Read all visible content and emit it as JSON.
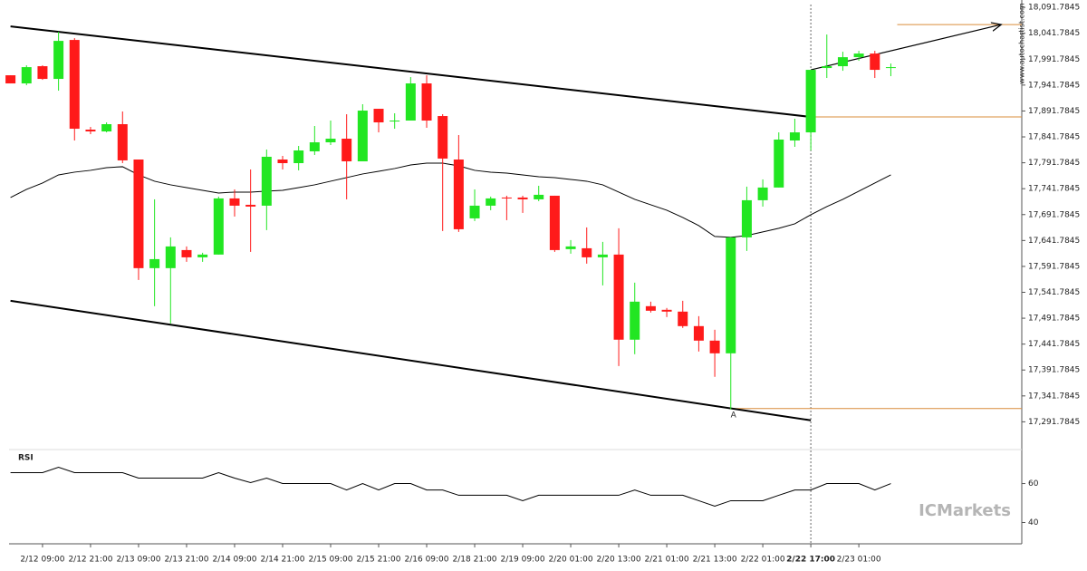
{
  "chart_data": {
    "type": "candlestick",
    "categories": [
      null,
      null,
      "2/12 09:00",
      null,
      null,
      "2/12 21:00",
      null,
      null,
      "2/13 09:00",
      null,
      null,
      "2/13 21:00",
      null,
      null,
      "2/14 09:00",
      null,
      null,
      "2/14 21:00",
      null,
      null,
      "2/15 09:00",
      null,
      null,
      "2/15 21:00",
      null,
      null,
      "2/16 09:00",
      null,
      null,
      "2/18 21:00",
      null,
      null,
      "2/19 09:00",
      null,
      null,
      "2/20 01:00",
      null,
      null,
      "2/20 13:00",
      null,
      null,
      "2/21 01:00",
      null,
      null,
      "2/21 13:00",
      null,
      null,
      "2/22 01:00",
      null,
      null,
      "2/22 17:00",
      null,
      null,
      "2/23 01:00",
      null,
      null
    ],
    "open": [
      17960.7,
      17945,
      17978.2,
      17953.7,
      18028.9,
      17855.8,
      17852.3,
      17866.3,
      17798.1,
      17588.4,
      17588.4,
      17623.3,
      17609.3,
      17614.6,
      17723,
      17710.7,
      17709,
      17798.1,
      17791.1,
      17813.9,
      17831.3,
      17838.3,
      17794.6,
      17896,
      17871.5,
      17873.3,
      17945,
      17882,
      17798.1,
      17684.5,
      17709,
      17724.7,
      17724.7,
      17721.2,
      17728.2,
      17625.1,
      17626.8,
      17609.3,
      17614.6,
      17450.3,
      17515,
      17508,
      17504.5,
      17476.5,
      17448.5,
      17424,
      17647.8,
      17719.5,
      17744,
      17834.8,
      17850.5,
      17974.7,
      17978.2,
      17995.6,
      18002.6,
      17974.7
    ],
    "high": [
      17960.7,
      17979.9,
      17979.9,
      18044.6,
      18032.4,
      17861,
      17869.8,
      17890.8,
      17798.1,
      17721.2,
      17647.8,
      17630.3,
      17618.1,
      17726.5,
      17740.4,
      17778.9,
      17817.4,
      17805.1,
      17824.3,
      17862.8,
      17873.3,
      17885.5,
      17904.8,
      17896,
      17887.3,
      17957.2,
      17960.7,
      17885.5,
      17845.3,
      17740.4,
      17726.5,
      17728.2,
      17728.2,
      17747.4,
      17728.2,
      17642.6,
      17667,
      17639.1,
      17665.3,
      17560.4,
      17523.7,
      17511.5,
      17525.4,
      17495.7,
      17469.5,
      17647.8,
      17745.7,
      17759.7,
      17850.5,
      17876.8,
      17971.2,
      18039.4,
      18006.1,
      18007.9,
      18007.9,
      17983.4
    ],
    "low": [
      17945,
      17941.5,
      17951.9,
      17931,
      17834.8,
      17847,
      17850.5,
      17791.1,
      17565.6,
      17515,
      17481.7,
      17600.6,
      17600.6,
      17614.6,
      17688,
      17619.8,
      17661.8,
      17778.9,
      17777.2,
      17806.9,
      17826.1,
      17721.2,
      17794.6,
      17850.5,
      17857.5,
      17873.3,
      17859.3,
      17660,
      17658.3,
      17679.3,
      17700.2,
      17681,
      17695,
      17717.7,
      17619.8,
      17616.3,
      17597.1,
      17555.1,
      17399.5,
      17422.3,
      17502.7,
      17494,
      17473,
      17427.5,
      17378.6,
      17315.7,
      17621.6,
      17707.2,
      17744,
      17822.6,
      17815.6,
      17955.5,
      17969.4,
      17988.7,
      17955.5,
      17959
    ],
    "close": [
      17945,
      17976.4,
      17953.7,
      18027.1,
      17857.5,
      17852.3,
      17866.3,
      17796.4,
      17588.4,
      17605.8,
      17630.3,
      17609.3,
      17614.6,
      17723,
      17709,
      17707.2,
      17803.4,
      17791.1,
      17815.6,
      17831.3,
      17838.3,
      17794.6,
      17892.5,
      17869.8,
      17873.3,
      17945,
      17873.3,
      17799.9,
      17663.5,
      17709,
      17723,
      17723,
      17721.2,
      17730,
      17623.3,
      17630.3,
      17609.3,
      17614.6,
      17450.3,
      17523.7,
      17506.2,
      17504.5,
      17476.5,
      17448.5,
      17424,
      17647.8,
      17719.5,
      17744,
      17836.6,
      17850.5,
      17971.2,
      17978.2,
      17995.6,
      18002.6,
      17971.2,
      17976.4
    ],
    "up_color": "#22e622",
    "down_color": "#ff1a1a",
    "ma": {
      "color": "#000000",
      "values": [
        17724.7,
        17740.5,
        17752.7,
        17768.4,
        17773.7,
        17777.2,
        17782.4,
        17784.2,
        17768.4,
        17756.2,
        17749.2,
        17743.9,
        17738.7,
        17733.4,
        17735.2,
        17735.2,
        17737,
        17738.7,
        17743.9,
        17749.2,
        17756.2,
        17763.2,
        17770.2,
        17775.4,
        17780.7,
        17787.6,
        17791.1,
        17791.1,
        17785.9,
        17777.2,
        17773.7,
        17771.9,
        17768.4,
        17764.9,
        17763.2,
        17759.7,
        17756.2,
        17749.2,
        17735.2,
        17721.2,
        17710.7,
        17700.2,
        17686.3,
        17670.5,
        17649.6,
        17647.8,
        17651.3,
        17658.3,
        17665.3,
        17674,
        17691.5,
        17707.2,
        17721.2,
        17737,
        17752.7,
        17768.4
      ]
    },
    "ylim": [
      17240,
      18106
    ],
    "yticks": [
      {
        "value": 18091.7845,
        "label": "18,091.7845"
      },
      {
        "value": 18041.7845,
        "label": "18,041.7845"
      },
      {
        "value": 17991.7845,
        "label": "17,991.7845"
      },
      {
        "value": 17941.7845,
        "label": "17,941.7845"
      },
      {
        "value": 17891.7845,
        "label": "17,891.7845"
      },
      {
        "value": 17841.7845,
        "label": "17,841.7845"
      },
      {
        "value": 17791.7845,
        "label": "17,791.7845"
      },
      {
        "value": 17741.7845,
        "label": "17,741.7845"
      },
      {
        "value": 17691.7845,
        "label": "17,691.7845"
      },
      {
        "value": 17641.7845,
        "label": "17,641.7845"
      },
      {
        "value": 17591.7845,
        "label": "17,591.7845"
      },
      {
        "value": 17541.7845,
        "label": "17,541.7845"
      },
      {
        "value": 17491.7845,
        "label": "17,491.7845"
      },
      {
        "value": 17441.7845,
        "label": "17,441.7845"
      },
      {
        "value": 17391.7845,
        "label": "17,391.7845"
      },
      {
        "value": 17341.7845,
        "label": "17,341.7845"
      },
      {
        "value": 17291.7845,
        "label": "17,291.7845"
      }
    ],
    "highlight_index": 50,
    "trend_lines": [
      {
        "x": [
          0,
          50
        ],
        "y": [
          18055.1,
          17880.3
        ],
        "color": "#000000"
      },
      {
        "x": [
          0,
          50
        ],
        "y": [
          17525.4,
          17294.7
        ],
        "color": "#000000"
      },
      {
        "x": [
          50,
          61.9
        ],
        "y": [
          17971.2,
          18058.6
        ],
        "color": "#000000",
        "arrow": true
      }
    ],
    "levels": [
      {
        "value": 18058.6,
        "from": 55.4,
        "color": "#d98c3a"
      },
      {
        "value": 17880.3,
        "from": 50,
        "color": "#d98c3a"
      },
      {
        "value": 17317.4,
        "from": 45,
        "color": "#d98c3a",
        "label": "A"
      }
    ],
    "rsi": {
      "title": "RSI",
      "color": "#000000",
      "ylim": [
        30,
        77
      ],
      "yticks": [
        60,
        40
      ],
      "values": [
        65.6,
        65.6,
        65.6,
        68.4,
        65.6,
        65.6,
        65.6,
        65.6,
        62.8,
        62.8,
        62.8,
        62.8,
        62.8,
        65.6,
        62.8,
        60.5,
        62.8,
        60,
        60,
        60,
        60,
        56.7,
        60,
        56.7,
        60,
        60,
        56.7,
        56.7,
        54,
        54,
        54,
        54,
        51.2,
        54,
        54,
        54,
        54,
        54,
        54,
        56.7,
        54,
        54,
        54,
        51.2,
        48.4,
        51.2,
        51.2,
        51.2,
        54,
        56.7,
        56.7,
        60,
        60,
        60,
        56.7,
        60
      ]
    },
    "watermarks": {
      "site": "www.autochartist.com",
      "broker": "ICMarkets"
    }
  }
}
